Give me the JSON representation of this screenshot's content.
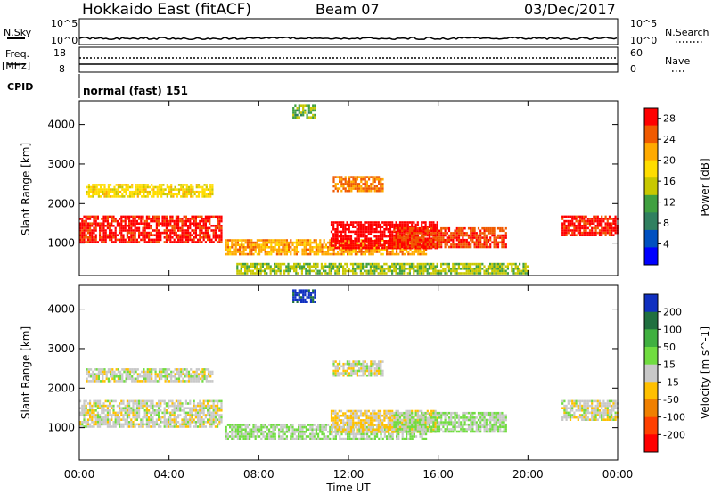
{
  "header": {
    "station": "Hokkaido East (fitACF)",
    "beam": "Beam 07",
    "date": "03/Dec/2017"
  },
  "top_panels": {
    "nsky_label": "N.Sky",
    "nsearch_label": "N.Search",
    "noise_ticks": [
      "10^5",
      "10^0"
    ],
    "freq_label_line1": "Freq.",
    "freq_label_line2": "[MHz]",
    "freq_ticks": [
      "18",
      "8"
    ],
    "nave_label": "Nave",
    "nave_ticks": [
      "60",
      "0"
    ],
    "cpid_label": "CPID",
    "cpid_value": "normal (fast) 151"
  },
  "colors": {
    "power_scale": [
      "#ff0000",
      "#f05a00",
      "#ffaa00",
      "#ffdd00",
      "#c8c800",
      "#40a040",
      "#308060",
      "#0050c0",
      "#0000ff"
    ],
    "velocity_scale": [
      "#1030c0",
      "#207040",
      "#40b040",
      "#70dc40",
      "#c8c8c8",
      "#ffc000",
      "#f08000",
      "#ff4000",
      "#ff0000"
    ]
  },
  "chart_data": [
    {
      "type": "heatmap",
      "name": "power",
      "xlabel": "Time UT",
      "ylabel": "Slant Range [km]",
      "xlim": [
        0,
        24
      ],
      "ylim": [
        180,
        4600
      ],
      "x_ticks": [
        "00:00",
        "04:00",
        "08:00",
        "12:00",
        "16:00",
        "20:00",
        "00:00"
      ],
      "y_ticks": [
        1000,
        2000,
        3000,
        4000
      ],
      "colorbar": {
        "label": "Power [dB]",
        "ticks": [
          4,
          8,
          12,
          16,
          20,
          24,
          28
        ],
        "range": [
          0,
          30
        ]
      },
      "regions": [
        {
          "t": [
            0.0,
            6.3
          ],
          "range": [
            1000,
            1700
          ],
          "value": 28
        },
        {
          "t": [
            0.3,
            5.9
          ],
          "range": [
            2200,
            2500
          ],
          "value": 18
        },
        {
          "t": [
            6.5,
            15.5
          ],
          "range": [
            700,
            1100
          ],
          "value": 22
        },
        {
          "t": [
            11.2,
            16.0
          ],
          "range": [
            900,
            1550
          ],
          "value": 30
        },
        {
          "t": [
            14.0,
            19.0
          ],
          "range": [
            900,
            1400
          ],
          "value": 26
        },
        {
          "t": [
            11.3,
            13.5
          ],
          "range": [
            2300,
            2700
          ],
          "value": 24
        },
        {
          "t": [
            21.5,
            24.0
          ],
          "range": [
            1200,
            1700
          ],
          "value": 28
        },
        {
          "t": [
            7.0,
            20.0
          ],
          "range": [
            250,
            500
          ],
          "value": 14
        },
        {
          "t": [
            9.5,
            10.5
          ],
          "range": [
            4200,
            4500
          ],
          "value": 12
        }
      ]
    },
    {
      "type": "heatmap",
      "name": "velocity",
      "xlabel": "Time UT",
      "ylabel": "Slant Range [km]",
      "xlim": [
        0,
        24
      ],
      "ylim": [
        180,
        4600
      ],
      "x_ticks": [
        "00:00",
        "04:00",
        "08:00",
        "12:00",
        "16:00",
        "20:00",
        "00:00"
      ],
      "y_ticks": [
        1000,
        2000,
        3000,
        4000
      ],
      "colorbar": {
        "label": "Velocity [m s^-1]",
        "ticks": [
          200,
          100,
          50,
          15,
          -15,
          -50,
          -100,
          -200
        ],
        "range": [
          -250,
          250
        ]
      },
      "regions": [
        {
          "t": [
            0.0,
            6.3
          ],
          "range": [
            1000,
            1700
          ],
          "value": 0
        },
        {
          "t": [
            0.3,
            5.9
          ],
          "range": [
            2200,
            2500
          ],
          "value": 0
        },
        {
          "t": [
            6.5,
            15.5
          ],
          "range": [
            700,
            1100
          ],
          "value": 30
        },
        {
          "t": [
            11.2,
            16.0
          ],
          "range": [
            900,
            1450
          ],
          "value": -30
        },
        {
          "t": [
            14.0,
            19.0
          ],
          "range": [
            900,
            1400
          ],
          "value": 30
        },
        {
          "t": [
            11.3,
            13.5
          ],
          "range": [
            2300,
            2700
          ],
          "value": 0
        },
        {
          "t": [
            21.5,
            24.0
          ],
          "range": [
            1200,
            1700
          ],
          "value": 0
        },
        {
          "t": [
            9.5,
            10.5
          ],
          "range": [
            4200,
            4500
          ],
          "value": 220
        }
      ]
    }
  ]
}
